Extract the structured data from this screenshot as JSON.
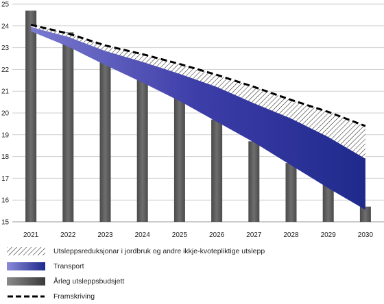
{
  "chart_data": {
    "type": "bar",
    "title": "",
    "xlabel": "",
    "ylabel": "",
    "ylim": [
      15,
      25
    ],
    "yticks": [
      15,
      16,
      17,
      18,
      19,
      20,
      21,
      22,
      23,
      24,
      25
    ],
    "categories": [
      "2021",
      "2022",
      "2023",
      "2024",
      "2025",
      "2026",
      "2027",
      "2028",
      "2029",
      "2030"
    ],
    "grid": true,
    "legend_position": "bottom",
    "series": [
      {
        "name": "Årleg utsleppsbudsjett",
        "kind": "bar",
        "color": "#5a5a5a",
        "values": [
          24.7,
          23.7,
          22.7,
          21.7,
          20.7,
          19.7,
          18.7,
          17.7,
          16.7,
          15.7
        ]
      },
      {
        "name": "Framskriving",
        "kind": "line",
        "style": "dashed",
        "color": "#000000",
        "values": [
          24.05,
          23.65,
          23.1,
          22.7,
          22.25,
          21.75,
          21.2,
          20.6,
          20.05,
          19.4
        ]
      },
      {
        "name": "Transport",
        "kind": "band",
        "color": "#3a3aa0",
        "upper": [
          23.95,
          23.5,
          22.85,
          22.35,
          21.8,
          21.2,
          20.45,
          19.75,
          18.9,
          17.9
        ],
        "lower": [
          23.75,
          23.05,
          22.2,
          21.4,
          20.55,
          19.6,
          18.65,
          17.6,
          16.55,
          15.55
        ]
      },
      {
        "name": "Utsleppsreduksjonar i jordbruk og andre ikkje-kvotepliktige utslepp",
        "kind": "band",
        "pattern": "hatched",
        "color": "#333333",
        "upper": [
          24.05,
          23.65,
          23.1,
          22.7,
          22.25,
          21.75,
          21.2,
          20.6,
          20.05,
          19.4
        ],
        "lower": [
          23.95,
          23.5,
          22.85,
          22.35,
          21.8,
          21.2,
          20.45,
          19.75,
          18.9,
          17.9
        ]
      }
    ],
    "legend": [
      {
        "label": "Utsleppsreduksjonar i jordbruk og andre ikkje-kvotepliktige utslepp",
        "swatch": "hatched"
      },
      {
        "label": "Transport",
        "swatch": "gradient-blue"
      },
      {
        "label": "Årleg utsleppsbudsjett",
        "swatch": "gradient-gray"
      },
      {
        "label": "Framskriving",
        "swatch": "dashed-line"
      }
    ]
  }
}
